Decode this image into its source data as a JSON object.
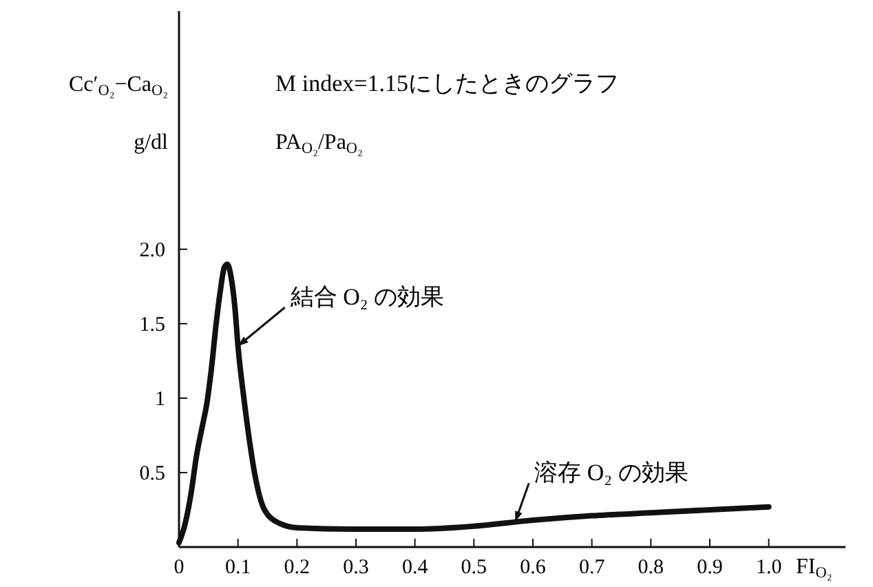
{
  "chart_data": {
    "type": "line",
    "title": "M index=1.15にしたときのグラフ",
    "subtitle": "PA$_{O₂}$/Pa$_{O₂}$",
    "ylabel": "Cc′$_{O₂}$−Ca$_{O₂}$\ng/dl",
    "xlabel": "FI$_{O₂}$",
    "x": [
      0,
      0.01,
      0.02,
      0.03,
      0.04,
      0.047,
      0.055,
      0.063,
      0.07,
      0.077,
      0.082,
      0.088,
      0.095,
      0.1,
      0.11,
      0.12,
      0.128,
      0.145,
      0.17,
      0.2,
      0.3,
      0.4,
      0.5,
      0.6,
      0.7,
      0.8,
      0.9,
      1.0
    ],
    "series": [
      {
        "color": "#111111",
        "values": [
          0.03,
          0.15,
          0.35,
          0.62,
          0.82,
          0.96,
          1.2,
          1.5,
          1.72,
          1.88,
          1.9,
          1.82,
          1.6,
          1.35,
          1.0,
          0.7,
          0.5,
          0.25,
          0.16,
          0.13,
          0.12,
          0.12,
          0.14,
          0.18,
          0.21,
          0.23,
          0.25,
          0.27
        ]
      }
    ],
    "xlim": [
      0,
      1.13
    ],
    "ylim": [
      0,
      3.6
    ],
    "xticks": [
      0,
      {
        "value": 0.1,
        "label": "0.1"
      },
      {
        "value": 0.2,
        "label": "0.2"
      },
      {
        "value": 0.3,
        "label": "0.3"
      },
      {
        "value": 0.4,
        "label": "0.4"
      },
      {
        "value": 0.5,
        "label": "0.5"
      },
      {
        "value": 0.6,
        "label": "0.6"
      },
      {
        "value": 0.7,
        "label": "0.7"
      },
      {
        "value": 0.8,
        "label": "0.8"
      },
      {
        "value": 0.9,
        "label": "0.9"
      },
      {
        "value": 1,
        "label": "1.0"
      }
    ],
    "yticks": [
      0.5,
      1,
      1.5,
      {
        "value": 2,
        "label": "2.0"
      }
    ],
    "annotations": [
      {
        "text": "結合 O₂ の効果",
        "x": 0.1,
        "y": 1.35
      },
      {
        "text": "溶存 O₂ の効果",
        "x": 0.57,
        "y": 0.17
      }
    ],
    "grid": false,
    "marker": "none",
    "line_style": "solid"
  }
}
